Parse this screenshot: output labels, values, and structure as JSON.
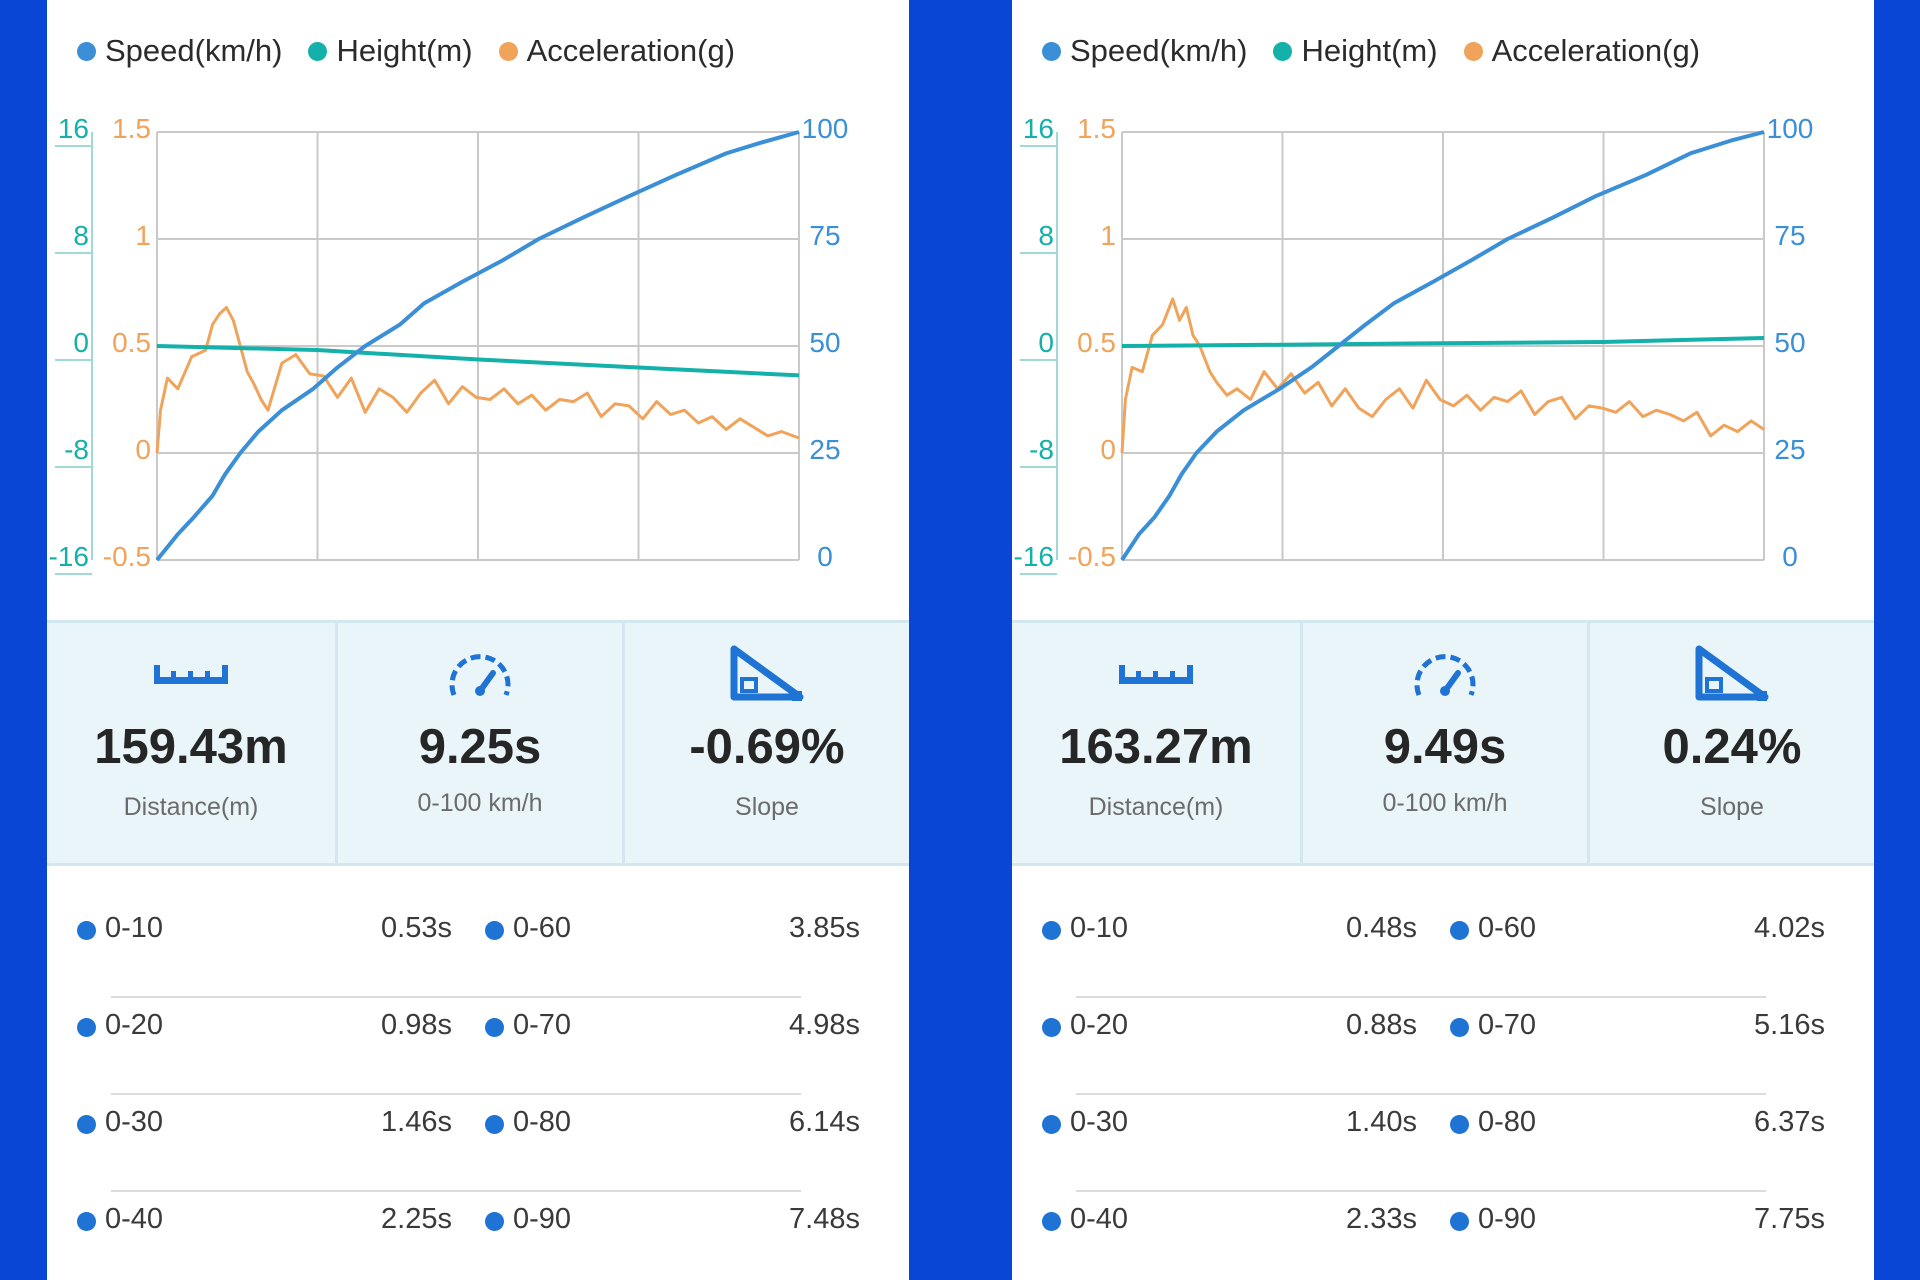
{
  "colors": {
    "speed": "#3b8fd6",
    "height": "#14b0aa",
    "acceleration": "#f0a35a",
    "accent": "#1e73d4",
    "frame": "#0946d6"
  },
  "panels": [
    {
      "legend": [
        "Speed(km/h)",
        "Height(m)",
        "Acceleration(g)"
      ],
      "chart_data": {
        "type": "line",
        "axes": {
          "height_ticks": [
            "16",
            "8",
            "0",
            "-8",
            "-16"
          ],
          "acceleration_ticks": [
            "1.5",
            "1",
            "0.5",
            "0",
            "-0.5"
          ],
          "speed_ticks": [
            "100",
            "75",
            "50",
            "25",
            "0"
          ],
          "height_range": [
            -16,
            16
          ],
          "acceleration_range": [
            -0.5,
            1.5
          ],
          "speed_range": [
            0,
            100
          ],
          "x_range": [
            0,
            9.25
          ],
          "grid": true
        },
        "series": [
          {
            "name": "Speed(km/h)",
            "axis": "right",
            "x": [
              0,
              0.3,
              0.53,
              0.8,
              0.98,
              1.2,
              1.46,
              1.8,
              2.25,
              2.6,
              3.0,
              3.5,
              3.85,
              4.4,
              4.98,
              5.5,
              6.14,
              6.8,
              7.48,
              8.2,
              8.7,
              9.25
            ],
            "values": [
              0,
              6,
              10,
              15,
              20,
              25,
              30,
              35,
              40,
              45,
              50,
              55,
              60,
              65,
              70,
              75,
              80,
              85,
              90,
              95,
              97.5,
              100
            ]
          },
          {
            "name": "Height(m)",
            "axis": "left-outer",
            "x": [
              0,
              2.3,
              4.6,
              6.9,
              9.25
            ],
            "values": [
              0,
              -0.3,
              -1.0,
              -1.6,
              -2.2
            ]
          },
          {
            "name": "Acceleration(g)",
            "axis": "left-inner",
            "x": [
              0,
              0.05,
              0.15,
              0.3,
              0.5,
              0.7,
              0.8,
              0.9,
              1.0,
              1.1,
              1.2,
              1.3,
              1.4,
              1.5,
              1.6,
              1.8,
              2.0,
              2.2,
              2.4,
              2.6,
              2.8,
              3.0,
              3.2,
              3.4,
              3.6,
              3.8,
              4.0,
              4.2,
              4.4,
              4.6,
              4.8,
              5.0,
              5.2,
              5.4,
              5.6,
              5.8,
              6.0,
              6.2,
              6.4,
              6.6,
              6.8,
              7.0,
              7.2,
              7.4,
              7.6,
              7.8,
              8.0,
              8.2,
              8.4,
              8.6,
              8.8,
              9.0,
              9.25
            ],
            "values": [
              0,
              0.2,
              0.35,
              0.3,
              0.45,
              0.48,
              0.6,
              0.65,
              0.68,
              0.62,
              0.5,
              0.38,
              0.32,
              0.25,
              0.2,
              0.42,
              0.46,
              0.37,
              0.36,
              0.26,
              0.35,
              0.19,
              0.3,
              0.26,
              0.19,
              0.28,
              0.34,
              0.23,
              0.31,
              0.26,
              0.25,
              0.3,
              0.23,
              0.27,
              0.2,
              0.25,
              0.24,
              0.28,
              0.17,
              0.23,
              0.22,
              0.16,
              0.24,
              0.18,
              0.2,
              0.14,
              0.17,
              0.11,
              0.16,
              0.12,
              0.08,
              0.1,
              0.07
            ]
          }
        ]
      },
      "stats": [
        {
          "icon": "ruler-icon",
          "value": "159.43m",
          "label": "Distance(m)"
        },
        {
          "icon": "speedometer-icon",
          "value": "9.25s",
          "label": "0-100 km/h"
        },
        {
          "icon": "slope-icon",
          "value": "-0.69%",
          "label": "Slope"
        }
      ],
      "splits": [
        {
          "left": {
            "label": "0-10",
            "time": "0.53s"
          },
          "right": {
            "label": "0-60",
            "time": "3.85s"
          }
        },
        {
          "left": {
            "label": "0-20",
            "time": "0.98s"
          },
          "right": {
            "label": "0-70",
            "time": "4.98s"
          }
        },
        {
          "left": {
            "label": "0-30",
            "time": "1.46s"
          },
          "right": {
            "label": "0-80",
            "time": "6.14s"
          }
        },
        {
          "left": {
            "label": "0-40",
            "time": "2.25s"
          },
          "right": {
            "label": "0-90",
            "time": "7.48s"
          }
        }
      ]
    },
    {
      "legend": [
        "Speed(km/h)",
        "Height(m)",
        "Acceleration(g)"
      ],
      "chart_data": {
        "type": "line",
        "axes": {
          "height_ticks": [
            "16",
            "8",
            "0",
            "-8",
            "-16"
          ],
          "acceleration_ticks": [
            "1.5",
            "1",
            "0.5",
            "0",
            "-0.5"
          ],
          "speed_ticks": [
            "100",
            "75",
            "50",
            "25",
            "0"
          ],
          "height_range": [
            -16,
            16
          ],
          "acceleration_range": [
            -0.5,
            1.5
          ],
          "speed_range": [
            0,
            100
          ],
          "x_range": [
            0,
            9.49
          ],
          "grid": true
        },
        "series": [
          {
            "name": "Speed(km/h)",
            "axis": "right",
            "x": [
              0,
              0.25,
              0.48,
              0.7,
              0.88,
              1.1,
              1.4,
              1.8,
              2.33,
              2.8,
              3.2,
              3.6,
              4.02,
              4.6,
              5.16,
              5.7,
              6.37,
              7.0,
              7.75,
              8.4,
              9.0,
              9.49
            ],
            "values": [
              0,
              6,
              10,
              15,
              20,
              25,
              30,
              35,
              40,
              45,
              50,
              55,
              60,
              65,
              70,
              75,
              80,
              85,
              90,
              95,
              98,
              100
            ]
          },
          {
            "name": "Height(m)",
            "axis": "left-outer",
            "x": [
              0,
              2.4,
              4.7,
              7.1,
              9.49
            ],
            "values": [
              0,
              0.1,
              0.2,
              0.3,
              0.6
            ]
          },
          {
            "name": "Acceleration(g)",
            "axis": "left-inner",
            "x": [
              0,
              0.05,
              0.15,
              0.3,
              0.45,
              0.6,
              0.75,
              0.85,
              0.95,
              1.05,
              1.15,
              1.3,
              1.4,
              1.55,
              1.7,
              1.9,
              2.1,
              2.3,
              2.5,
              2.7,
              2.9,
              3.1,
              3.3,
              3.5,
              3.7,
              3.9,
              4.1,
              4.3,
              4.5,
              4.7,
              4.9,
              5.1,
              5.3,
              5.5,
              5.7,
              5.9,
              6.1,
              6.3,
              6.5,
              6.7,
              6.9,
              7.1,
              7.3,
              7.5,
              7.7,
              7.9,
              8.1,
              8.3,
              8.5,
              8.7,
              8.9,
              9.1,
              9.3,
              9.49
            ],
            "values": [
              0,
              0.25,
              0.4,
              0.38,
              0.55,
              0.6,
              0.72,
              0.62,
              0.68,
              0.55,
              0.5,
              0.38,
              0.33,
              0.27,
              0.3,
              0.25,
              0.38,
              0.3,
              0.37,
              0.28,
              0.33,
              0.22,
              0.3,
              0.21,
              0.17,
              0.25,
              0.3,
              0.21,
              0.34,
              0.25,
              0.22,
              0.27,
              0.2,
              0.26,
              0.24,
              0.29,
              0.18,
              0.24,
              0.26,
              0.16,
              0.22,
              0.21,
              0.19,
              0.24,
              0.17,
              0.2,
              0.18,
              0.15,
              0.19,
              0.08,
              0.13,
              0.1,
              0.15,
              0.11
            ]
          }
        ]
      },
      "stats": [
        {
          "icon": "ruler-icon",
          "value": "163.27m",
          "label": "Distance(m)"
        },
        {
          "icon": "speedometer-icon",
          "value": "9.49s",
          "label": "0-100 km/h"
        },
        {
          "icon": "slope-icon",
          "value": "0.24%",
          "label": "Slope"
        }
      ],
      "splits": [
        {
          "left": {
            "label": "0-10",
            "time": "0.48s"
          },
          "right": {
            "label": "0-60",
            "time": "4.02s"
          }
        },
        {
          "left": {
            "label": "0-20",
            "time": "0.88s"
          },
          "right": {
            "label": "0-70",
            "time": "5.16s"
          }
        },
        {
          "left": {
            "label": "0-30",
            "time": "1.40s"
          },
          "right": {
            "label": "0-80",
            "time": "6.37s"
          }
        },
        {
          "left": {
            "label": "0-40",
            "time": "2.33s"
          },
          "right": {
            "label": "0-90",
            "time": "7.75s"
          }
        }
      ]
    }
  ]
}
